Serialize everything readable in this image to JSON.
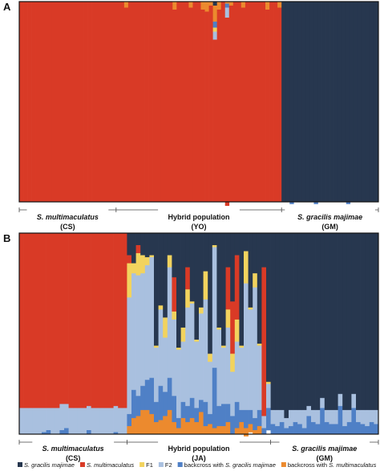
{
  "colors": {
    "gracilis": "#27374f",
    "multimaculatus": "#d93a26",
    "f1": "#f2d35e",
    "f2": "#a9c0df",
    "bc_gracilis": "#4f80c6",
    "bc_multi": "#ec8a2e"
  },
  "chart_data": [
    {
      "type": "bar",
      "panel": "A",
      "ylim": [
        0,
        1
      ],
      "groups": [
        {
          "name_italic": "S. multimaculatus",
          "code": "(CS)",
          "n": 24
        },
        {
          "name": "Hybrid population",
          "code": "(YO)",
          "n": 41
        },
        {
          "name_italic": "S. gracilis majimae",
          "code": "(GM)",
          "n": 24
        }
      ],
      "series": [
        {
          "name": "S. gracilis majimae",
          "color_key": "gracilis",
          "values": [
            0,
            0,
            0,
            0,
            0,
            0,
            0,
            0,
            0,
            0,
            0,
            0,
            0,
            0,
            0,
            0,
            0,
            0,
            0,
            0,
            0,
            0,
            0,
            0,
            0,
            0,
            0,
            0,
            0,
            0,
            0,
            0,
            0,
            0,
            0,
            0,
            0,
            0,
            0,
            0,
            0,
            0,
            0,
            0,
            0,
            0,
            0,
            0,
            0.02,
            0,
            0,
            0,
            0,
            0,
            0,
            0,
            0,
            0,
            0,
            0,
            0,
            0,
            0,
            0,
            0,
            1,
            1,
            1,
            1,
            1,
            1,
            1,
            1,
            1,
            1,
            1,
            1,
            1,
            1,
            1,
            1,
            1,
            1,
            1,
            1,
            1,
            1,
            1,
            1
          ]
        },
        {
          "name": "backcross with S. multimaculatus",
          "color_key": "bc_multi",
          "values": [
            0,
            0,
            0,
            0,
            0,
            0,
            0,
            0,
            0,
            0,
            0,
            0,
            0,
            0,
            0,
            0,
            0,
            0,
            0,
            0,
            0,
            0,
            0,
            0,
            0,
            0,
            0.03,
            0,
            0,
            0,
            0,
            0,
            0,
            0,
            0,
            0,
            0,
            0,
            0.04,
            0,
            0,
            0,
            0.03,
            0,
            0,
            0.04,
            0.05,
            0.02,
            0.08,
            0.04,
            0,
            0.01,
            0.02,
            0,
            0,
            0.03,
            0,
            0,
            0,
            0,
            0,
            0.04,
            0,
            0,
            0.03,
            0,
            0,
            0,
            0,
            0,
            0,
            0,
            0,
            0,
            0,
            0,
            0,
            0,
            0,
            0,
            0,
            0,
            0,
            0,
            0,
            0,
            0,
            0,
            0
          ]
        },
        {
          "name": "backcross with S. gracilis majimae",
          "color_key": "bc_gracilis",
          "values": [
            0,
            0,
            0,
            0,
            0,
            0,
            0,
            0,
            0,
            0,
            0,
            0,
            0,
            0,
            0,
            0,
            0,
            0,
            0,
            0,
            0,
            0,
            0,
            0,
            0,
            0,
            0,
            0,
            0,
            0,
            0,
            0,
            0,
            0,
            0,
            0,
            0,
            0,
            0,
            0,
            0,
            0,
            0,
            0,
            0,
            0,
            0,
            0,
            0.03,
            0,
            0,
            0.02,
            0,
            0,
            0,
            0,
            0,
            0,
            0,
            0,
            0,
            0,
            0,
            0,
            0,
            0,
            0,
            0.01,
            0,
            0,
            0,
            0,
            0,
            0.01,
            0,
            0,
            0,
            0,
            0,
            0,
            0,
            0.01,
            0,
            0,
            0,
            0,
            0,
            0,
            0
          ]
        },
        {
          "name": "F1",
          "color_key": "f1",
          "values": [
            0,
            0,
            0,
            0,
            0,
            0,
            0,
            0,
            0,
            0,
            0,
            0,
            0,
            0,
            0,
            0,
            0,
            0,
            0,
            0,
            0,
            0,
            0,
            0,
            0,
            0,
            0,
            0,
            0,
            0,
            0,
            0,
            0,
            0,
            0,
            0,
            0,
            0,
            0,
            0,
            0,
            0,
            0,
            0,
            0,
            0,
            0,
            0,
            0.02,
            0,
            0,
            0,
            0,
            0,
            0,
            0,
            0,
            0,
            0,
            0,
            0,
            0,
            0,
            0,
            0,
            0,
            0,
            0,
            0,
            0,
            0,
            0,
            0,
            0,
            0,
            0,
            0,
            0,
            0,
            0,
            0,
            0,
            0,
            0,
            0,
            0,
            0,
            0,
            0
          ]
        },
        {
          "name": "F2",
          "color_key": "f2",
          "values": [
            0,
            0,
            0,
            0,
            0,
            0,
            0,
            0,
            0,
            0,
            0,
            0,
            0,
            0,
            0,
            0,
            0,
            0,
            0,
            0,
            0,
            0,
            0,
            0,
            0,
            0,
            0,
            0,
            0,
            0,
            0,
            0,
            0,
            0,
            0,
            0,
            0,
            0,
            0,
            0,
            0,
            0,
            0,
            0,
            0,
            0,
            0,
            0,
            0.04,
            0,
            0,
            0.05,
            0,
            0,
            0,
            0,
            0,
            0,
            0,
            0,
            0,
            0,
            0,
            0,
            0,
            0,
            0,
            0,
            0,
            0,
            0,
            0,
            0,
            0,
            0,
            0,
            0,
            0,
            0,
            0,
            0,
            0,
            0,
            0,
            0,
            0,
            0,
            0,
            0
          ]
        },
        {
          "name": "S. multimaculatus",
          "color_key": "multimaculatus",
          "values": [
            1,
            1,
            1,
            1,
            1,
            1,
            1,
            1,
            1,
            1,
            1,
            1,
            1,
            1,
            1,
            1,
            1,
            1,
            1,
            1,
            1,
            1,
            1,
            1,
            1,
            1,
            0.97,
            1,
            1,
            1,
            1,
            1,
            1,
            1,
            1,
            1,
            1,
            1,
            0.96,
            1,
            1,
            1,
            0.97,
            1,
            1,
            0.96,
            0.95,
            0.98,
            0.81,
            0.96,
            1,
            0.97,
            0.98,
            1,
            1,
            0.97,
            1,
            1,
            1,
            1,
            1,
            0.96,
            1,
            1,
            0.97,
            0,
            0,
            0,
            0,
            0,
            0,
            0,
            0,
            0,
            0,
            0,
            0,
            0,
            0,
            0,
            0,
            0,
            0,
            0,
            0,
            0,
            0,
            0,
            0
          ]
        }
      ]
    },
    {
      "type": "bar",
      "panel": "B",
      "ylim": [
        0,
        1
      ],
      "groups": [
        {
          "name_italic": "S. multimaculatus",
          "code": "(CS)",
          "n": 24
        },
        {
          "name": "Hybrid population",
          "code": "(JA)",
          "n": 32
        },
        {
          "name_italic": "S. gracilis majimae",
          "code": "(GM)",
          "n": 24
        }
      ],
      "series": [
        {
          "name": "S. gracilis majimae",
          "color_key": "gracilis",
          "values": [
            0,
            0,
            0,
            0,
            0,
            0,
            0,
            0,
            0,
            0,
            0,
            0,
            0,
            0,
            0,
            0,
            0,
            0,
            0,
            0,
            0,
            0,
            0,
            0,
            0.11,
            0.15,
            0.06,
            0.11,
            0.12,
            0.11,
            0.56,
            0.36,
            0.42,
            0.11,
            0.22,
            0.57,
            0.47,
            0.17,
            0.34,
            0.53,
            0.37,
            0.19,
            0.6,
            0.06,
            0.47,
            0.56,
            0.17,
            0.34,
            0.11,
            0.56,
            0.09,
            0.37,
            0.2,
            0.55,
            0.17,
            0.74,
            0.88,
            0.88,
            0.88,
            0.92,
            0.88,
            0.88,
            0.88,
            0.88,
            0.86,
            0.88,
            0.88,
            0.82,
            0.88,
            0.88,
            0.88,
            0.8,
            0.88,
            0.88,
            0.8,
            0.88,
            0.88,
            0.88,
            0.88,
            0.88
          ]
        },
        {
          "name": "S. multimaculatus",
          "color_key": "multimaculatus",
          "values": [
            0.87,
            0.87,
            0.87,
            0.87,
            0.87,
            0.87,
            0.87,
            0.87,
            0.87,
            0.85,
            0.85,
            0.87,
            0.87,
            0.87,
            0.87,
            0.86,
            0.87,
            0.87,
            0.87,
            0.87,
            0.87,
            0.86,
            0.87,
            0.87,
            0.04,
            0,
            0.04,
            0,
            0,
            0,
            0,
            0,
            0,
            0,
            0.17,
            0,
            0,
            0.11,
            0,
            0,
            0,
            0,
            0,
            0,
            0,
            0,
            0.21,
            0.26,
            0.32,
            0,
            0,
            0,
            0,
            0,
            0.74,
            0,
            0,
            0,
            0,
            0,
            0,
            0,
            0,
            0,
            0,
            0,
            0,
            0,
            0,
            0,
            0,
            0,
            0,
            0,
            0,
            0,
            0,
            0,
            0,
            0
          ]
        },
        {
          "name": "F1",
          "color_key": "f1",
          "values": [
            0,
            0,
            0,
            0,
            0,
            0,
            0,
            0,
            0,
            0,
            0,
            0,
            0,
            0,
            0,
            0,
            0,
            0,
            0,
            0,
            0,
            0,
            0,
            0,
            0.17,
            0.05,
            0.11,
            0.09,
            0.04,
            0.01,
            0.01,
            0.02,
            0.1,
            0.06,
            0.04,
            0.01,
            0.07,
            0.09,
            0.01,
            0.01,
            0.03,
            0.14,
            0.04,
            0.01,
            0.01,
            0.01,
            0.09,
            0.09,
            0.11,
            0.01,
            0.16,
            0.01,
            0.07,
            0.01,
            0,
            0.01,
            0,
            0,
            0,
            0,
            0,
            0,
            0,
            0,
            0,
            0,
            0,
            0,
            0,
            0,
            0,
            0,
            0,
            0,
            0,
            0,
            0,
            0,
            0,
            0
          ]
        },
        {
          "name": "F2",
          "color_key": "f2",
          "values": [
            0.13,
            0.13,
            0.13,
            0.13,
            0.13,
            0.12,
            0.11,
            0.13,
            0.13,
            0.13,
            0.12,
            0.13,
            0.13,
            0.13,
            0.13,
            0.12,
            0.13,
            0.13,
            0.13,
            0.13,
            0.13,
            0.13,
            0.13,
            0.13,
            0.58,
            0.58,
            0.6,
            0.56,
            0.57,
            0.6,
            0.27,
            0.38,
            0.27,
            0.55,
            0.38,
            0.34,
            0.3,
            0.49,
            0.47,
            0.33,
            0.43,
            0.51,
            0.26,
            0.6,
            0.38,
            0.28,
            0.38,
            0.22,
            0.3,
            0.31,
            0.63,
            0.5,
            0.65,
            0.32,
            0.06,
            0.12,
            0.07,
            0.08,
            0.06,
            0.05,
            0.08,
            0.06,
            0.07,
            0.09,
            0.05,
            0.06,
            0.07,
            0.05,
            0.06,
            0.07,
            0.07,
            0.06,
            0.08,
            0.06,
            0.07,
            0.06,
            0.07,
            0.08,
            0.06,
            0.07
          ]
        },
        {
          "name": "backcross with S. gracilis majimae",
          "color_key": "bc_gracilis",
          "values": [
            0,
            0,
            0,
            0,
            0,
            0.01,
            0.02,
            0,
            0,
            0.02,
            0.03,
            0,
            0,
            0,
            0,
            0.02,
            0,
            0,
            0,
            0,
            0,
            0.01,
            0,
            0,
            0.06,
            0.14,
            0.1,
            0.12,
            0.15,
            0.18,
            0.1,
            0.17,
            0.12,
            0.16,
            0.13,
            0.05,
            0.08,
            0.08,
            0.1,
            0.07,
            0.06,
            0.12,
            0.05,
            0.3,
            0.1,
            0.11,
            0.09,
            0.09,
            0.13,
            0.06,
            0.09,
            0.07,
            0.06,
            0.08,
            0.03,
            0.11,
            0.05,
            0.04,
            0.06,
            0.03,
            0.04,
            0.06,
            0.05,
            0.03,
            0.09,
            0.06,
            0.05,
            0.13,
            0.06,
            0.05,
            0.05,
            0.14,
            0.04,
            0.06,
            0.13,
            0.06,
            0.05,
            0.04,
            0.06,
            0.05
          ]
        },
        {
          "name": "backcross with S. multimaculatus",
          "color_key": "bc_multi",
          "values": [
            0,
            0,
            0,
            0,
            0,
            0,
            0,
            0,
            0,
            0,
            0,
            0,
            0,
            0,
            0,
            0,
            0,
            0,
            0,
            0,
            0,
            0,
            0,
            0,
            0.04,
            0.08,
            0.09,
            0.12,
            0.12,
            0.1,
            0.06,
            0.07,
            0.09,
            0.12,
            0.06,
            0.03,
            0.08,
            0.06,
            0.08,
            0.06,
            0.11,
            0.04,
            0.05,
            0.03,
            0.04,
            0.04,
            0.06,
            0,
            0.03,
            0.06,
            0.04,
            0.04,
            0.02,
            0.04,
            0,
            0,
            0,
            0,
            0,
            0,
            0,
            0,
            0,
            0,
            0,
            0,
            0,
            0,
            0,
            0,
            0,
            0,
            0,
            0,
            0,
            0,
            0,
            0,
            0,
            0
          ]
        }
      ]
    }
  ],
  "legend": [
    {
      "label": "S. gracilis majimae",
      "italic": true,
      "color_key": "gracilis"
    },
    {
      "label": "S. multimaculatus",
      "italic": true,
      "color_key": "multimaculatus"
    },
    {
      "label": "F1",
      "italic": false,
      "color_key": "f1"
    },
    {
      "label": "F2",
      "italic": false,
      "color_key": "f2"
    },
    {
      "label_prefix": "backcross with ",
      "label_italic": "S. gracilis majimae",
      "color_key": "bc_gracilis"
    },
    {
      "label_prefix": "backcross with ",
      "label_italic": "S. multimaculatus",
      "color_key": "bc_multi"
    }
  ]
}
